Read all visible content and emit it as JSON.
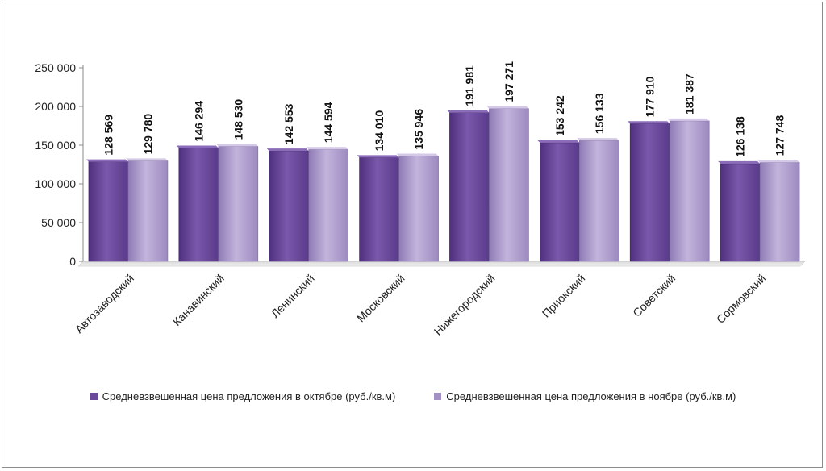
{
  "chart_data": {
    "type": "bar",
    "categories": [
      "Автозаводский",
      "Канавинский",
      "Ленинский",
      "Московский",
      "Нижегородский",
      "Приокский",
      "Советский",
      "Сормовский"
    ],
    "series": [
      {
        "name": "Средневзвешенная цена предложения в октябре (руб./кв.м)",
        "values": [
          128569,
          146294,
          142553,
          134010,
          191981,
          153242,
          177910,
          126138
        ],
        "labels": [
          "128 569",
          "146 294",
          "142 553",
          "134 010",
          "191 981",
          "153 242",
          "177 910",
          "126 138"
        ],
        "color": "#6b4a9b"
      },
      {
        "name": "Средневзвешенная цена предложения в ноябре (руб./кв.м)",
        "values": [
          129780,
          148530,
          144594,
          135946,
          197271,
          156133,
          181387,
          127748
        ],
        "labels": [
          "129 780",
          "148 530",
          "144 594",
          "135 946",
          "197 271",
          "156 133",
          "181 387",
          "127 748"
        ],
        "color": "#a390c4"
      }
    ],
    "yticks": [
      "0",
      "50 000",
      "100 000",
      "150 000",
      "200 000",
      "250 000"
    ],
    "ylim": [
      0,
      250000
    ],
    "legend_position": "bottom",
    "grid": false
  }
}
